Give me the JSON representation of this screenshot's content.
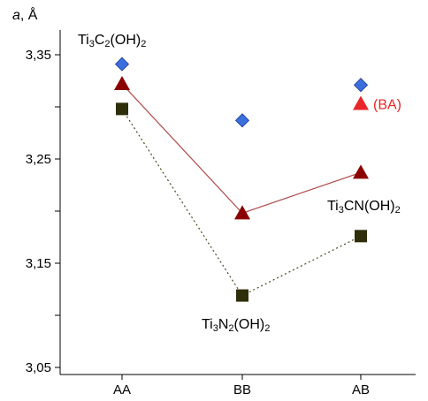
{
  "chart_data": {
    "type": "scatter",
    "ylabel_var": "a",
    "ylabel_unit": ", Å",
    "ylim": [
      3.05,
      3.35
    ],
    "yticks": [
      {
        "value": 3.35,
        "label": "3,35"
      },
      {
        "value": 3.3,
        "label": ""
      },
      {
        "value": 3.25,
        "label": "3,25"
      },
      {
        "value": 3.2,
        "label": ""
      },
      {
        "value": 3.15,
        "label": "3,15"
      },
      {
        "value": 3.1,
        "label": ""
      },
      {
        "value": 3.05,
        "label": "3,05"
      }
    ],
    "categories": [
      "AA",
      "BB",
      "AB"
    ],
    "grid": false,
    "series": [
      {
        "name": "Ti3C2(OH)2",
        "label_parts": [
          "Ti",
          "3",
          "C",
          "2",
          "(OH)",
          "2"
        ],
        "marker": "diamond",
        "color": "#3b6fe0",
        "line": "none",
        "values": [
          3.341,
          3.287,
          3.321
        ]
      },
      {
        "name": "Ti3CN(OH)2",
        "label_parts": [
          "Ti",
          "3",
          "CN(OH)",
          "2"
        ],
        "marker": "triangle",
        "color": "#8b0000",
        "line": "solid",
        "line_color": "#b04848",
        "values": [
          3.322,
          3.198,
          3.237
        ]
      },
      {
        "name": "Ti3N2(OH)2",
        "label_parts": [
          "Ti",
          "3",
          "N",
          "2",
          "(OH)",
          "2"
        ],
        "marker": "square",
        "color": "#2e2e0a",
        "line": "dotted",
        "line_color": "#4a4a1a",
        "values": [
          3.298,
          3.119,
          3.176
        ]
      }
    ],
    "extra_point": {
      "label": "(BA)",
      "marker": "triangle",
      "color": "#e8262a",
      "category": "AB",
      "value": 3.303
    }
  }
}
